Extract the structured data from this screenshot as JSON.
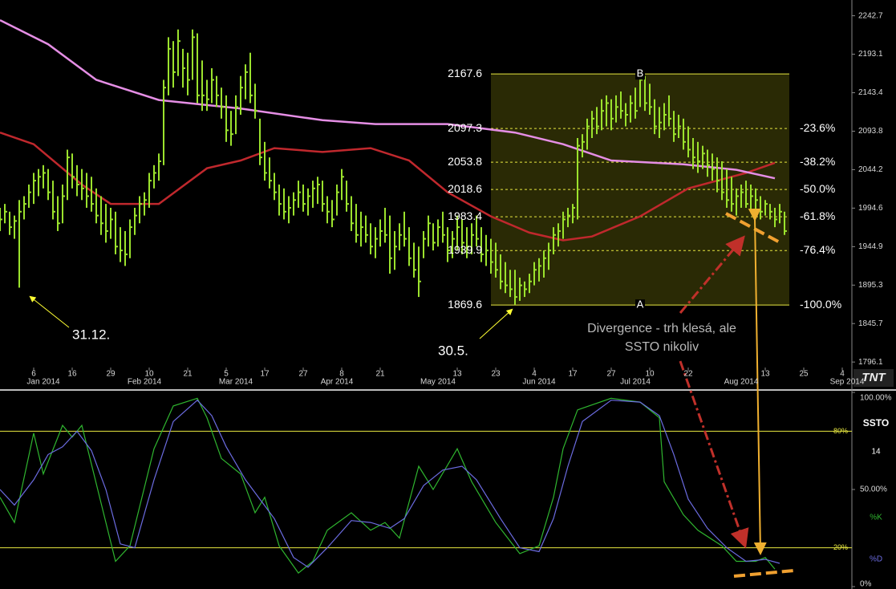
{
  "logo": "TNT",
  "chart_data": [
    {
      "type": "ohlc",
      "color": "#9be22d",
      "xlim": [
        -7,
        170
      ],
      "ylim": [
        1789,
        2263
      ],
      "yticks": [
        2242.7,
        2193.1,
        2143.4,
        2093.8,
        2044.2,
        1994.6,
        1944.9,
        1895.3,
        1845.7,
        1796.1
      ],
      "xticks": [
        {
          "value": 0,
          "label": "6"
        },
        {
          "value": 8,
          "label": "16"
        },
        {
          "value": 16,
          "label": "29"
        },
        {
          "value": 24,
          "label": "10"
        },
        {
          "value": 32,
          "label": "21"
        },
        {
          "value": 40,
          "label": "5"
        },
        {
          "value": 48,
          "label": "17"
        },
        {
          "value": 56,
          "label": "27"
        },
        {
          "value": 64,
          "label": "8"
        },
        {
          "value": 72,
          "label": "21"
        },
        {
          "value": 88,
          "label": "13"
        },
        {
          "value": 96,
          "label": "23"
        },
        {
          "value": 104,
          "label": "4"
        },
        {
          "value": 112,
          "label": "17"
        },
        {
          "value": 120,
          "label": "27"
        },
        {
          "value": 128,
          "label": "10"
        },
        {
          "value": 136,
          "label": "22"
        },
        {
          "value": 152,
          "label": "13"
        },
        {
          "value": 160,
          "label": "25"
        },
        {
          "value": 168,
          "label": "4"
        }
      ],
      "month_labels": [
        {
          "value": 2,
          "label": "Jan 2014"
        },
        {
          "value": 23,
          "label": "Feb 2014"
        },
        {
          "value": 42,
          "label": "Mar 2014"
        },
        {
          "value": 63,
          "label": "Apr 2014"
        },
        {
          "value": 84,
          "label": "May 2014"
        },
        {
          "value": 105,
          "label": "Jun 2014"
        },
        {
          "value": 125,
          "label": "Jul 2014"
        },
        {
          "value": 147,
          "label": "Aug 2014"
        },
        {
          "value": 169,
          "label": "Sep 2014"
        }
      ],
      "x": [
        -7,
        -6,
        -5,
        -4,
        -3,
        -2,
        -1,
        0,
        1,
        2,
        3,
        4,
        5,
        6,
        7,
        8,
        9,
        10,
        11,
        12,
        13,
        14,
        15,
        16,
        17,
        18,
        19,
        20,
        21,
        22,
        23,
        24,
        25,
        26,
        27,
        28,
        29,
        30,
        31,
        32,
        33,
        34,
        35,
        36,
        37,
        38,
        39,
        40,
        41,
        42,
        43,
        44,
        45,
        46,
        47,
        48,
        49,
        50,
        51,
        52,
        53,
        54,
        55,
        56,
        57,
        58,
        59,
        60,
        61,
        62,
        63,
        64,
        65,
        66,
        67,
        68,
        69,
        70,
        71,
        72,
        73,
        74,
        75,
        76,
        77,
        78,
        79,
        80,
        81,
        82,
        83,
        84,
        85,
        86,
        87,
        88,
        89,
        90,
        91,
        92,
        93,
        94,
        95,
        96,
        97,
        98,
        99,
        100,
        101,
        102,
        103,
        104,
        105,
        106,
        107,
        108,
        109,
        110,
        111,
        112,
        113,
        114,
        115,
        116,
        117,
        118,
        119,
        120,
        121,
        122,
        123,
        124,
        125,
        126,
        127,
        128,
        129,
        130,
        131,
        132,
        133,
        134,
        135,
        136,
        137,
        138,
        139,
        140,
        141,
        142,
        143,
        144,
        145,
        146,
        147,
        148,
        149,
        150,
        151,
        152,
        153,
        154,
        155,
        156
      ],
      "high": [
        1995,
        2000,
        1990,
        1985,
        2005,
        2010,
        2025,
        2040,
        2045,
        2050,
        2045,
        2030,
        2010,
        2025,
        2070,
        2065,
        2050,
        2045,
        2040,
        2035,
        2020,
        2010,
        2000,
        1995,
        1990,
        1970,
        1965,
        1980,
        1995,
        2010,
        2015,
        2040,
        2050,
        2065,
        2160,
        2215,
        2210,
        2225,
        2200,
        2195,
        2225,
        2220,
        2185,
        2160,
        2175,
        2165,
        2150,
        2140,
        2120,
        2140,
        2165,
        2180,
        2195,
        2155,
        2110,
        2080,
        2060,
        2040,
        2025,
        2020,
        2010,
        2015,
        2030,
        2025,
        2020,
        2030,
        2035,
        2030,
        2010,
        2005,
        2025,
        2045,
        2030,
        2010,
        2000,
        1990,
        1985,
        1975,
        1970,
        1980,
        1995,
        1985,
        1965,
        1975,
        1990,
        1970,
        1950,
        1945,
        1965,
        1985,
        1975,
        1980,
        1990,
        1970,
        1965,
        1985,
        1980,
        1970,
        1975,
        1985,
        1970,
        1960,
        1955,
        1950,
        1935,
        1925,
        1915,
        1915,
        1905,
        1900,
        1910,
        1925,
        1930,
        1940,
        1950,
        1970,
        1975,
        1990,
        1995,
        2000,
        2085,
        2090,
        2110,
        2120,
        2125,
        2135,
        2140,
        2135,
        2140,
        2145,
        2130,
        2140,
        2150,
        2168,
        2165,
        2155,
        2135,
        2125,
        2130,
        2140,
        2120,
        2115,
        2110,
        2100,
        2085,
        2080,
        2075,
        2070,
        2065,
        2060,
        2055,
        2045,
        2035,
        2020,
        2025,
        2030,
        2025,
        2020,
        2010,
        2005,
        2000,
        1995,
        2000,
        1990
      ],
      "low": [
        1965,
        1975,
        1960,
        1955,
        1892,
        1980,
        1995,
        2000,
        2010,
        2020,
        2005,
        1980,
        1965,
        1975,
        2005,
        2020,
        2010,
        2005,
        1995,
        1990,
        1975,
        1960,
        1950,
        1955,
        1935,
        1925,
        1920,
        1930,
        1960,
        1975,
        1985,
        1995,
        2020,
        2030,
        2050,
        2140,
        2150,
        2165,
        2150,
        2140,
        2160,
        2130,
        2120,
        2120,
        2130,
        2125,
        2110,
        2080,
        2075,
        2090,
        2115,
        2135,
        2130,
        2110,
        2050,
        2030,
        2020,
        2005,
        1985,
        1980,
        1975,
        1985,
        1995,
        1990,
        1985,
        1995,
        2000,
        1990,
        1975,
        1970,
        1985,
        2005,
        1990,
        1965,
        1950,
        1945,
        1950,
        1935,
        1930,
        1945,
        1950,
        1910,
        1915,
        1940,
        1945,
        1920,
        1905,
        1880,
        1930,
        1945,
        1940,
        1945,
        1950,
        1925,
        1930,
        1940,
        1935,
        1930,
        1935,
        1945,
        1925,
        1920,
        1910,
        1905,
        1890,
        1885,
        1880,
        1870,
        1875,
        1880,
        1885,
        1895,
        1900,
        1905,
        1915,
        1935,
        1945,
        1955,
        1970,
        1975,
        1980,
        2060,
        2070,
        2085,
        2090,
        2095,
        2100,
        2095,
        2105,
        2110,
        2100,
        2105,
        2110,
        2125,
        2120,
        2115,
        2090,
        2085,
        2095,
        2100,
        2080,
        2085,
        2070,
        2060,
        2045,
        2040,
        2045,
        2035,
        2030,
        2015,
        2005,
        1995,
        1990,
        1985,
        1995,
        1995,
        1990,
        1985,
        1980,
        1985,
        1980,
        1970,
        1975,
        1960
      ],
      "close": [
        1980,
        1990,
        1970,
        1978,
        1990,
        2000,
        2015,
        2030,
        2035,
        2040,
        2015,
        1990,
        1975,
        2010,
        2060,
        2035,
        2025,
        2020,
        2010,
        2000,
        1985,
        1975,
        1965,
        1980,
        1945,
        1940,
        1935,
        1970,
        1985,
        2000,
        2005,
        2030,
        2040,
        2055,
        2150,
        2200,
        2170,
        2210,
        2175,
        2160,
        2215,
        2140,
        2140,
        2135,
        2160,
        2140,
        2125,
        2095,
        2090,
        2125,
        2150,
        2170,
        2140,
        2120,
        2060,
        2040,
        2030,
        2015,
        2000,
        1990,
        1995,
        2005,
        2015,
        2000,
        2010,
        2020,
        2025,
        2000,
        1990,
        1980,
        2015,
        2035,
        2000,
        1975,
        1960,
        1970,
        1960,
        1945,
        1955,
        1965,
        1960,
        1930,
        1945,
        1960,
        1955,
        1930,
        1915,
        1900,
        1955,
        1975,
        1950,
        1970,
        1960,
        1940,
        1955,
        1970,
        1950,
        1945,
        1960,
        1955,
        1935,
        1940,
        1925,
        1915,
        1900,
        1895,
        1890,
        1880,
        1895,
        1890,
        1900,
        1915,
        1920,
        1930,
        1940,
        1960,
        1965,
        1980,
        1985,
        1995,
        2075,
        2080,
        2100,
        2110,
        2100,
        2120,
        2130,
        2110,
        2125,
        2120,
        2115,
        2130,
        2120,
        2160,
        2130,
        2125,
        2100,
        2105,
        2115,
        2110,
        2090,
        2100,
        2080,
        2070,
        2060,
        2055,
        2065,
        2050,
        2045,
        2030,
        2015,
        2005,
        2000,
        2010,
        2015,
        2000,
        2010,
        2005,
        1990,
        2000,
        1990,
        1980,
        1990,
        1965
      ],
      "series": [
        {
          "color": "#c0282d",
          "x": [
            -7,
            0,
            10,
            16,
            26,
            36,
            43,
            50,
            60,
            70,
            78,
            86,
            95,
            103,
            110,
            116,
            126,
            136,
            148,
            154
          ],
          "values": [
            2092,
            2077,
            2025,
            2000,
            2000,
            2046,
            2056,
            2072,
            2067,
            2072,
            2056,
            2015,
            1984,
            1963,
            1953,
            1958,
            1984,
            2020,
            2040,
            2053
          ]
        },
        {
          "color": "#e58ee5",
          "x": [
            -7,
            3,
            13,
            26,
            43,
            60,
            71,
            86,
            100,
            110,
            120,
            135,
            146,
            154
          ],
          "values": [
            2237,
            2206,
            2160,
            2134,
            2123,
            2108,
            2103,
            2103,
            2092,
            2077,
            2056,
            2051,
            2044,
            2033
          ]
        }
      ],
      "fib": {
        "xlim": [
          95,
          157
        ],
        "points": [
          "B",
          "A"
        ],
        "levels": [
          2167.6,
          2097.3,
          2053.8,
          2018.6,
          1983.4,
          1939.9,
          1869.6
        ],
        "ratios": [
          null,
          {
            "value": -23.6,
            "label": "-23.6%"
          },
          {
            "value": -38.2,
            "label": "-38.2%"
          },
          {
            "value": -50.0,
            "label": "-50.0%"
          },
          {
            "value": -61.8,
            "label": "-61.8%"
          },
          {
            "value": -76.4,
            "label": "-76.4%"
          },
          {
            "value": -100.0,
            "label": "-100.0%"
          }
        ]
      },
      "annotations": [
        "31.12.",
        "30.5.",
        "Divergence - trh klesá, ale",
        "SSTO nikoliv"
      ]
    },
    {
      "type": "line",
      "title": "SSTO",
      "period": 14,
      "xlim": [
        -7,
        170
      ],
      "ylim": [
        0,
        100
      ],
      "yticks": [
        {
          "value": 100,
          "label": "100.00%"
        },
        {
          "value": 50,
          "label": "50.00%"
        },
        {
          "value": 0,
          "label": "0%"
        }
      ],
      "levels": [
        {
          "value": 80,
          "label": "80%"
        },
        {
          "value": 20,
          "label": "20%"
        }
      ],
      "series": [
        {
          "name": "%K",
          "color": "#2fb52f",
          "x": [
            -7,
            -4,
            0,
            2,
            6,
            8,
            10,
            15,
            17,
            20,
            25,
            29,
            34,
            36,
            39,
            43,
            46,
            48,
            51,
            55,
            58,
            61,
            66,
            70,
            73,
            76,
            80,
            83,
            88,
            91,
            96,
            101,
            105,
            108,
            110,
            113,
            120,
            126,
            130,
            131,
            135,
            138,
            143,
            146,
            150,
            152,
            154
          ],
          "values": [
            46,
            33,
            79,
            58,
            83,
            77,
            83,
            33,
            13,
            21,
            71,
            93,
            97,
            87,
            66,
            58,
            38,
            46,
            21,
            7,
            13,
            29,
            38,
            29,
            33,
            25,
            62,
            50,
            71,
            54,
            33,
            17,
            21,
            46,
            71,
            91,
            97,
            95,
            87,
            54,
            37,
            29,
            21,
            13,
            13,
            15,
            9
          ]
        },
        {
          "name": "%D",
          "color": "#6b6be0",
          "x": [
            -7,
            -4,
            0,
            3,
            6,
            9,
            12,
            15,
            18,
            21,
            25,
            29,
            34,
            37,
            40,
            44,
            47,
            50,
            54,
            57,
            61,
            66,
            70,
            74,
            77,
            81,
            85,
            89,
            92,
            97,
            101,
            105,
            108,
            111,
            114,
            120,
            126,
            130,
            133,
            136,
            140,
            144,
            148,
            152,
            155
          ],
          "values": [
            50,
            42,
            55,
            68,
            72,
            80,
            70,
            50,
            22,
            20,
            55,
            85,
            96,
            88,
            72,
            55,
            45,
            35,
            15,
            10,
            20,
            34,
            33,
            30,
            35,
            52,
            60,
            62,
            55,
            35,
            20,
            18,
            35,
            62,
            85,
            96,
            95,
            88,
            68,
            45,
            30,
            20,
            13,
            14,
            12
          ]
        }
      ]
    }
  ]
}
